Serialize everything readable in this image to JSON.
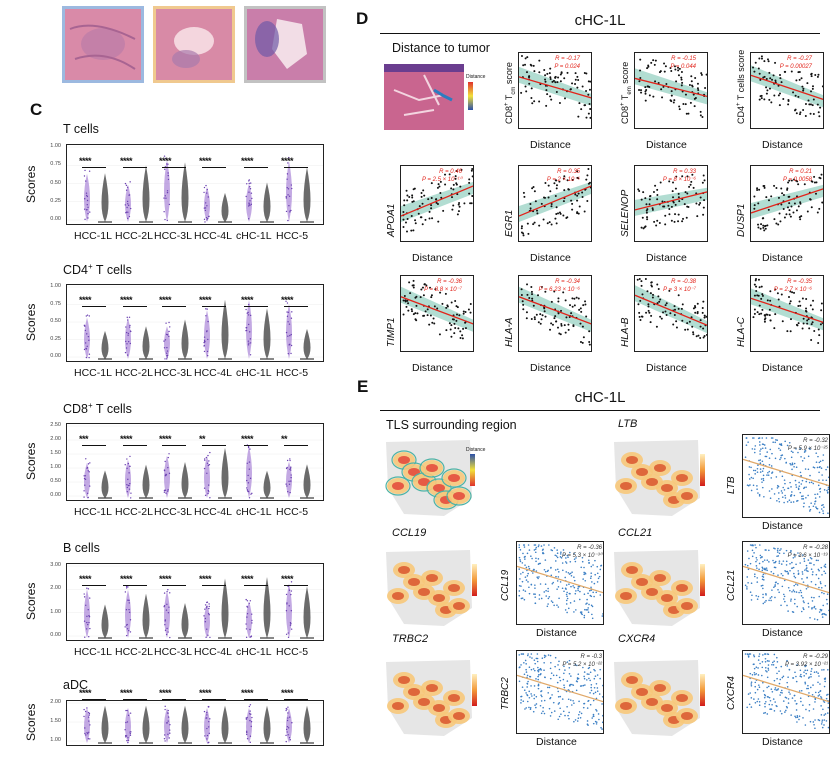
{
  "panel_c": {
    "label": "C",
    "y_axis_label": "Scores",
    "categories": [
      "HCC-1L",
      "HCC-2L",
      "HCC-3L",
      "HCC-4L",
      "cHC-1L",
      "HCC-5"
    ],
    "rows": [
      {
        "title": "T cells",
        "ticks": [
          "1.00",
          "0.75",
          "0.50",
          "0.25",
          "0.00"
        ],
        "sig": [
          "****",
          "****",
          "****",
          "****",
          "****",
          "****"
        ]
      },
      {
        "title_pre": "CD4",
        "title_sup": "+",
        "title_post": " T cells",
        "ticks": [
          "1.00",
          "0.75",
          "0.50",
          "0.25",
          "0.00"
        ],
        "sig": [
          "****",
          "****",
          "****",
          "****",
          "****",
          "****"
        ]
      },
      {
        "title_pre": "CD8",
        "title_sup": "+",
        "title_post": " T cells",
        "ticks": [
          "2.50",
          "2.00",
          "1.50",
          "1.00",
          "0.50",
          "0.00"
        ],
        "sig": [
          "***",
          "****",
          "****",
          "**",
          "****",
          "**"
        ]
      },
      {
        "title": "B cells",
        "ticks": [
          "3.00",
          "2.00",
          "1.00",
          "0.00"
        ],
        "sig": [
          "****",
          "****",
          "****",
          "****",
          "****",
          "****"
        ]
      },
      {
        "title": "aDC",
        "ticks": [
          "2.00",
          "1.50",
          "1.00"
        ],
        "sig": [
          "****",
          "****",
          "****",
          "****",
          "****",
          "****"
        ]
      }
    ]
  },
  "panel_d": {
    "label": "D",
    "title": "cHC-1L",
    "subtitle": "Distance to tumor",
    "legend_label": "Distance",
    "x_label": "Distance",
    "plots": [
      {
        "y_pre": "CD8",
        "y_sup": "+",
        "y_mid": " T",
        "y_sub": "cm",
        "y_post": " score",
        "r": "R = -0.17",
        "p": "P = 0.024"
      },
      {
        "y_pre": "CD8",
        "y_sup": "+",
        "y_mid": " T",
        "y_sub": "em",
        "y_post": " score",
        "r": "R = -0.15",
        "p": "P = 0.044"
      },
      {
        "y_pre": "CD4",
        "y_sup": "+",
        "y_mid": " T cells score",
        "y_sub": "",
        "y_post": "",
        "r": "R = -0.27",
        "p": "P = 0.00027"
      },
      {
        "gene": "APOA1",
        "r": "R = 0.46",
        "p": "P = 2.5 × 10⁻¹⁰"
      },
      {
        "gene": "EGR1",
        "r": "R = 0.35",
        "p": "P = 2 × 10⁻⁶"
      },
      {
        "gene": "SELENOP",
        "r": "R = 0.33",
        "p": "P = 8 × 10⁻⁶"
      },
      {
        "gene": "DUSP1",
        "r": "R = 0.21",
        "p": "P = 0.0058"
      },
      {
        "gene": "TIMP1",
        "r": "R = -0.36",
        "p": "P = 8.8 × 10⁻⁷"
      },
      {
        "gene": "HLA-A",
        "r": "R = -0.34",
        "p": "P = 6.23 × 10⁻⁶"
      },
      {
        "gene": "HLA-B",
        "r": "R = -0.38",
        "p": "P = 3 × 10⁻⁷"
      },
      {
        "gene": "HLA-C",
        "r": "R = -0.35",
        "p": "P = 2.7 × 10⁻⁶"
      }
    ]
  },
  "panel_e": {
    "label": "E",
    "title": "cHC-1L",
    "subtitle": "TLS surrounding region",
    "legend_label": "Distance",
    "x_label": "Distance",
    "genes": [
      {
        "name": "LTB",
        "r": "R = -0.32",
        "p": "P = 5.9 × 10⁻²⁵"
      },
      {
        "name": "CCL19",
        "r": "R = -0.36",
        "p": "P = 5.3 × 10⁻³⁰"
      },
      {
        "name": "CCL21",
        "r": "R = -0.28",
        "p": "P = 3.6 × 10⁻¹⁹"
      },
      {
        "name": "TRBC2",
        "r": "R = -0.3",
        "p": "P = 5.2 × 10⁻²²"
      },
      {
        "name": "CXCR4",
        "r": "R = -0.29",
        "p": "P = 3.92 × 10⁻²¹"
      }
    ]
  },
  "colors": {
    "purple": "#9b6fd0",
    "dark": "#3a3a3a",
    "red": "#e2231a",
    "teal": "#7fc7b4",
    "blue": "#3b7fc4",
    "orange": "#e0a868"
  }
}
